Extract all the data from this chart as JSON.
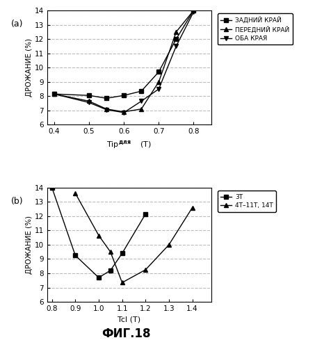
{
  "top": {
    "label": "(a)",
    "xlabel_main": "Tip",
    "xlabel_super": "для",
    "xlabel_end": "    (T)",
    "ylabel": "ДРОЖАНИЕ (%)",
    "xlim": [
      0.38,
      0.85
    ],
    "ylim": [
      6,
      14
    ],
    "yticks": [
      6,
      7,
      8,
      9,
      10,
      11,
      12,
      13,
      14
    ],
    "xticks": [
      0.4,
      0.5,
      0.6,
      0.7,
      0.8
    ],
    "series": [
      {
        "label": "ЗАДНИЙ КРАЙ",
        "marker": "s",
        "x": [
          0.4,
          0.5,
          0.55,
          0.6,
          0.65,
          0.7,
          0.75,
          0.8
        ],
        "y": [
          8.15,
          8.05,
          7.85,
          8.05,
          8.35,
          9.7,
          12.0,
          14.0
        ]
      },
      {
        "label": "ПЕРЕДНИЙ КРАЙ",
        "marker": "^",
        "x": [
          0.4,
          0.5,
          0.55,
          0.6,
          0.65,
          0.7,
          0.75,
          0.8
        ],
        "y": [
          8.15,
          7.65,
          7.1,
          6.9,
          7.1,
          9.0,
          12.5,
          14.0
        ]
      },
      {
        "label": "ОБА КРАЯ",
        "marker": "v",
        "x": [
          0.4,
          0.5,
          0.55,
          0.6,
          0.65,
          0.7,
          0.75,
          0.8
        ],
        "y": [
          8.15,
          7.55,
          7.05,
          6.85,
          7.65,
          8.5,
          11.5,
          13.9
        ]
      }
    ]
  },
  "bottom": {
    "label": "(b)",
    "xlabel": "Tcl (T)",
    "ylabel": "ДРОЖАНИЕ (%)",
    "xlim": [
      0.78,
      1.48
    ],
    "ylim": [
      6,
      14
    ],
    "yticks": [
      6,
      7,
      8,
      9,
      10,
      11,
      12,
      13,
      14
    ],
    "xticks": [
      0.8,
      0.9,
      1.0,
      1.1,
      1.2,
      1.3,
      1.4
    ],
    "series": [
      {
        "label": "3T",
        "marker": "s",
        "x": [
          0.8,
          0.9,
          1.0,
          1.05,
          1.1,
          1.2
        ],
        "y": [
          14.0,
          9.25,
          7.7,
          8.2,
          9.4,
          12.15
        ]
      },
      {
        "label": "4T–11T, 14T",
        "marker": "^",
        "x": [
          0.9,
          1.0,
          1.05,
          1.1,
          1.2,
          1.3,
          1.4
        ],
        "y": [
          13.6,
          10.65,
          9.5,
          7.35,
          8.25,
          10.0,
          12.6
        ]
      }
    ]
  },
  "fig_label": "ФИГ.18",
  "background_color": "#ffffff",
  "line_color": "#000000",
  "grid_color": "#bbbbbb"
}
